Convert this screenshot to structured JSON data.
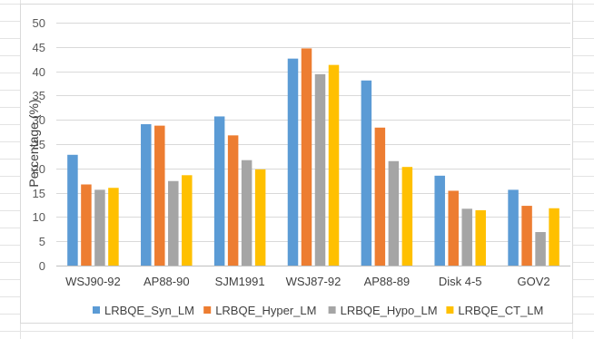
{
  "chart_data": {
    "type": "bar",
    "title": "",
    "xlabel": "",
    "ylabel": "Percentage (%)",
    "ylim": [
      0,
      50
    ],
    "yticks": [
      0,
      5,
      10,
      15,
      20,
      25,
      30,
      35,
      40,
      45,
      50
    ],
    "grid": true,
    "legend_position": "bottom",
    "categories": [
      "WSJ90-92",
      "AP88-90",
      "SJM1991",
      "WSJ87-92",
      "AP88-89",
      "Disk 4-5",
      "GOV2"
    ],
    "series": [
      {
        "name": "LRBQE_Syn_LM",
        "color": "#5b9bd5",
        "values": [
          22.8,
          29.1,
          30.7,
          42.6,
          38.1,
          18.5,
          15.6
        ]
      },
      {
        "name": "LRBQE_Hyper_LM",
        "color": "#ed7d31",
        "values": [
          16.7,
          28.8,
          26.8,
          44.7,
          28.4,
          15.4,
          12.3
        ]
      },
      {
        "name": "LRBQE_Hypo_LM",
        "color": "#a5a5a5",
        "values": [
          15.6,
          17.4,
          21.7,
          39.4,
          21.5,
          11.7,
          6.9
        ]
      },
      {
        "name": "LRBQE_CT_LM",
        "color": "#ffc000",
        "values": [
          16.0,
          18.6,
          19.8,
          41.3,
          20.3,
          11.4,
          11.8
        ]
      }
    ]
  }
}
